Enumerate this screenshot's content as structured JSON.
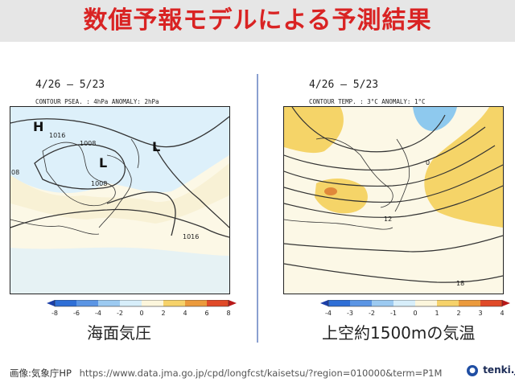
{
  "banner": {
    "title": "数値予報モデルによる予測結果"
  },
  "left_panel": {
    "date_range": "4/26 – 5/23",
    "contour_label": "CONTOUR PSEA. : 4hPa   ANOMALY: 2hPa",
    "pressure_labels": [
      "H",
      "L",
      "L"
    ],
    "contour_values": [
      "1016",
      "1008",
      "1008",
      "1016",
      "08"
    ],
    "scale_ticks": [
      "-8",
      "-6",
      "-4",
      "-2",
      "0",
      "2",
      "4",
      "6",
      "8"
    ],
    "caption": "海面気圧",
    "colors": {
      "neg_strong": "#2f6fd6",
      "neg": "#79b4ec",
      "neg_weak": "#d7eefa",
      "pos_weak": "#fcf6dc",
      "pos": "#f6d26a",
      "pos_strong": "#e04a28"
    }
  },
  "right_panel": {
    "date_range": "4/26 – 5/23",
    "contour_label": "CONTOUR TEMP. : 3°C   ANOMALY: 1°C",
    "contour_values": [
      "0",
      "12",
      "18"
    ],
    "scale_ticks": [
      "-4",
      "-3",
      "-2",
      "-1",
      "0",
      "1",
      "2",
      "3",
      "4"
    ],
    "caption": "上空約1500mの気温",
    "colors": {
      "cold": "#8ec9ee",
      "warm": "#f5d468",
      "hot": "#e0883a"
    }
  },
  "footer": {
    "credit": "画像:気象庁HP",
    "url": "https://www.data.jma.go.jp/cpd/longfcst/kaisetsu/?region=010000&term=P1M",
    "brand": "tenki.jp"
  }
}
